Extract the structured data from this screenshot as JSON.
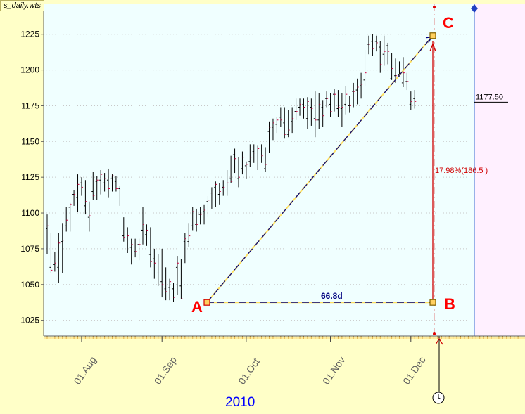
{
  "chart_data": {
    "type": "ohlc",
    "title": "s_daily.wts",
    "year_label": "2010",
    "y_ticks": [
      1025,
      1050,
      1075,
      1100,
      1125,
      1150,
      1175,
      1200,
      1225
    ],
    "ylim": [
      1014,
      1246
    ],
    "x_ticks": [
      "01.Aug",
      "01.Sep",
      "01.Oct",
      "01.Nov",
      "01.Dec"
    ],
    "last_price_label": "1177.50",
    "annotations": {
      "point_a": "A",
      "point_b": "B",
      "point_c": "C",
      "duration": "66.8d",
      "change": "17.98%(186.5  )"
    },
    "bars": [
      [
        1089,
        1099,
        1071,
        1091
      ],
      [
        1062,
        1086,
        1058,
        1060
      ],
      [
        1064,
        1073,
        1059,
        1065
      ],
      [
        1062,
        1086,
        1051,
        1079
      ],
      [
        1080,
        1093,
        1058,
        1081
      ],
      [
        1091,
        1104,
        1087,
        1095
      ],
      [
        1104,
        1107,
        1087,
        1106
      ],
      [
        1113,
        1116,
        1105,
        1113
      ],
      [
        1111,
        1127,
        1101,
        1120
      ],
      [
        1121,
        1125,
        1112,
        1118
      ],
      [
        1105,
        1123,
        1099,
        1108
      ],
      [
        1097,
        1108,
        1087,
        1098
      ],
      [
        1115,
        1129,
        1109,
        1112
      ],
      [
        1122,
        1126,
        1109,
        1123
      ],
      [
        1123,
        1130,
        1113,
        1127
      ],
      [
        1121,
        1128,
        1115,
        1124
      ],
      [
        1123,
        1131,
        1111,
        1117
      ],
      [
        1124,
        1127,
        1115,
        1126
      ],
      [
        1122,
        1126,
        1115,
        1117
      ],
      [
        1117,
        1119,
        1105,
        1116
      ],
      [
        1084,
        1097,
        1080,
        1083
      ],
      [
        1086,
        1090,
        1072,
        1084
      ],
      [
        1076,
        1082,
        1064,
        1078
      ],
      [
        1073,
        1082,
        1069,
        1073
      ],
      [
        1078,
        1082,
        1067,
        1078
      ],
      [
        1088,
        1104,
        1078,
        1092
      ],
      [
        1085,
        1092,
        1077,
        1088
      ],
      [
        1071,
        1090,
        1062,
        1066
      ],
      [
        1068,
        1075,
        1054,
        1065
      ],
      [
        1058,
        1071,
        1049,
        1058
      ],
      [
        1052,
        1075,
        1041,
        1050
      ],
      [
        1047,
        1062,
        1039,
        1045
      ],
      [
        1048,
        1054,
        1039,
        1052
      ],
      [
        1047,
        1051,
        1038,
        1041
      ],
      [
        1062,
        1070,
        1043,
        1065
      ],
      [
        1049,
        1068,
        1040,
        1040
      ],
      [
        1080,
        1086,
        1065,
        1082
      ],
      [
        1080,
        1093,
        1076,
        1084
      ],
      [
        1091,
        1104,
        1088,
        1101
      ],
      [
        1092,
        1103,
        1087,
        1092
      ],
      [
        1099,
        1104,
        1092,
        1099
      ],
      [
        1101,
        1106,
        1092,
        1102
      ],
      [
        1108,
        1112,
        1097,
        1109
      ],
      [
        1114,
        1118,
        1103,
        1114
      ],
      [
        1118,
        1122,
        1104,
        1120
      ],
      [
        1113,
        1121,
        1106,
        1115
      ],
      [
        1118,
        1123,
        1112,
        1118
      ],
      [
        1116,
        1130,
        1112,
        1121
      ],
      [
        1124,
        1140,
        1121,
        1122
      ],
      [
        1141,
        1145,
        1128,
        1138
      ],
      [
        1124,
        1139,
        1118,
        1125
      ],
      [
        1131,
        1143,
        1127,
        1139
      ],
      [
        1133,
        1136,
        1124,
        1134
      ],
      [
        1136,
        1148,
        1132,
        1139
      ],
      [
        1143,
        1148,
        1135,
        1142
      ],
      [
        1144,
        1147,
        1130,
        1145
      ],
      [
        1144,
        1148,
        1135,
        1140
      ],
      [
        1131,
        1146,
        1129,
        1134
      ],
      [
        1157,
        1164,
        1142,
        1160
      ],
      [
        1160,
        1166,
        1151,
        1163
      ],
      [
        1162,
        1167,
        1156,
        1165
      ],
      [
        1167,
        1174,
        1160,
        1165
      ],
      [
        1163,
        1174,
        1152,
        1155
      ],
      [
        1155,
        1172,
        1153,
        1158
      ],
      [
        1164,
        1174,
        1156,
        1166
      ],
      [
        1171,
        1180,
        1165,
        1171
      ],
      [
        1174,
        1180,
        1168,
        1176
      ],
      [
        1176,
        1180,
        1166,
        1174
      ],
      [
        1166,
        1181,
        1159,
        1178
      ],
      [
        1174,
        1180,
        1161,
        1173
      ],
      [
        1166,
        1185,
        1153,
        1165
      ],
      [
        1165,
        1184,
        1159,
        1176
      ],
      [
        1174,
        1179,
        1160,
        1168
      ],
      [
        1180,
        1185,
        1174,
        1180
      ],
      [
        1176,
        1184,
        1167,
        1171
      ],
      [
        1183,
        1187,
        1171,
        1183
      ],
      [
        1173,
        1186,
        1167,
        1174
      ],
      [
        1173,
        1184,
        1160,
        1174
      ],
      [
        1176,
        1189,
        1169,
        1183
      ],
      [
        1175,
        1182,
        1170,
        1175
      ],
      [
        1185,
        1191,
        1174,
        1185
      ],
      [
        1186,
        1194,
        1176,
        1188
      ],
      [
        1189,
        1198,
        1180,
        1190
      ],
      [
        1193,
        1214,
        1189,
        1198
      ],
      [
        1218,
        1224,
        1211,
        1218
      ],
      [
        1220,
        1225,
        1210,
        1215
      ],
      [
        1220,
        1224,
        1213,
        1219
      ],
      [
        1216,
        1220,
        1198,
        1204
      ],
      [
        1211,
        1224,
        1203,
        1213
      ],
      [
        1217,
        1219,
        1204,
        1213
      ],
      [
        1194,
        1212,
        1193,
        1201
      ],
      [
        1196,
        1208,
        1191,
        1196
      ],
      [
        1197,
        1206,
        1195,
        1197
      ],
      [
        1191,
        1209,
        1188,
        1198
      ],
      [
        1192,
        1198,
        1186,
        1192
      ],
      [
        1176,
        1185,
        1172,
        1178
      ],
      [
        1180,
        1186,
        1173,
        1178
      ]
    ]
  }
}
